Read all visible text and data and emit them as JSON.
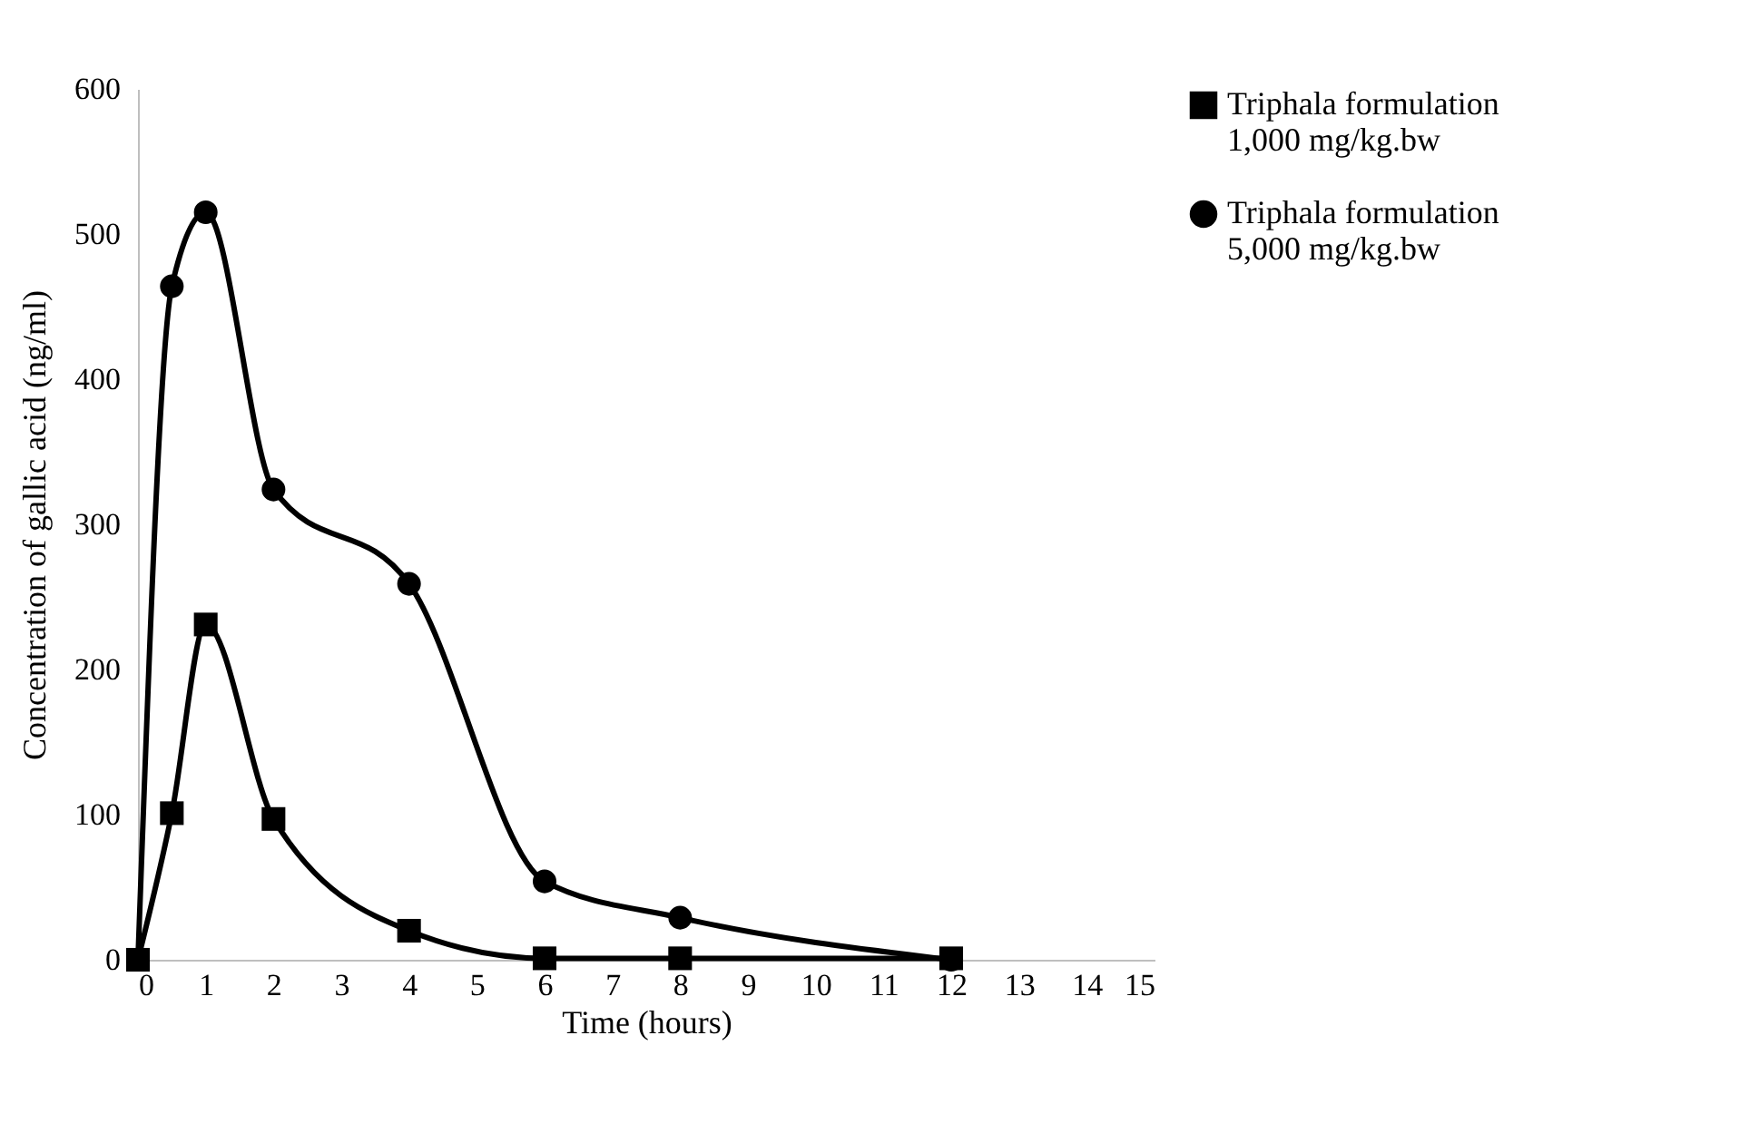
{
  "chart_data": {
    "type": "line",
    "xlabel": "Time (hours)",
    "ylabel": "Concentration of gallic acid (ng/ml)",
    "xlim": [
      0,
      15
    ],
    "xticks": [
      0,
      1,
      2,
      3,
      4,
      5,
      6,
      7,
      8,
      9,
      10,
      11,
      12,
      13,
      14,
      15
    ],
    "ylim": [
      0,
      600
    ],
    "yticks": [
      0,
      100,
      200,
      300,
      400,
      500,
      600
    ],
    "grid": false,
    "legend": "right",
    "series": [
      {
        "name": "Triphala formulation\n1,000 mg/kg.bw",
        "color": "#000000",
        "marker": "square",
        "x": [
          0,
          0.5,
          1,
          2,
          4,
          6,
          8,
          12
        ],
        "values": [
          0,
          101,
          231,
          97,
          20,
          1,
          1,
          1
        ]
      },
      {
        "name": "Triphala formulation\n5,000 mg/kg.bw",
        "color": "#000000",
        "marker": "circle",
        "x": [
          0,
          0.5,
          1,
          2,
          4,
          6,
          8,
          12
        ],
        "values": [
          0,
          464,
          515,
          324,
          259,
          54,
          29,
          0
        ]
      }
    ]
  }
}
